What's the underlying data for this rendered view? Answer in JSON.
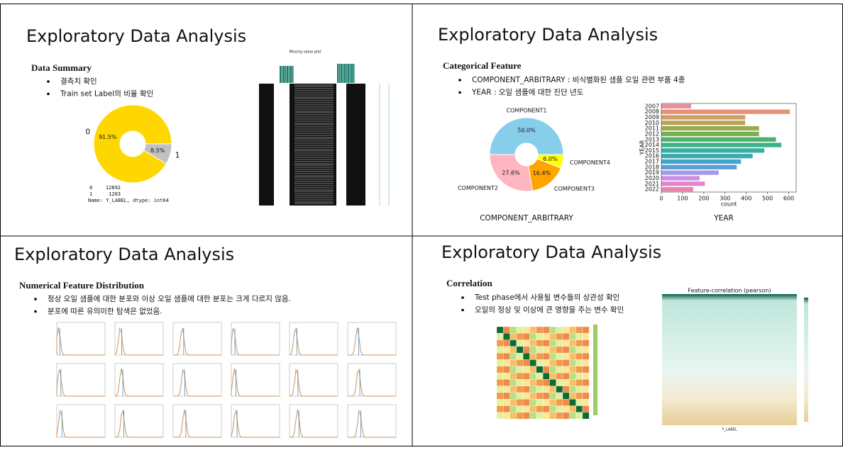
{
  "slides": [
    {
      "title": "Exploratory Data Analysis",
      "heading": "Data Summary",
      "bullets": [
        "결측치 확인",
        "Train set Label의 비율 확인"
      ],
      "label_pie": {
        "type": "pie",
        "labels": [
          "0",
          "1"
        ],
        "values": [
          91.5,
          8.5
        ],
        "value_labels": [
          "91.5%",
          "8.5%"
        ],
        "colors": [
          "#ffd700",
          "#c0c0c0"
        ]
      },
      "missing_plot": {
        "title": "Missing value plot"
      },
      "value_counts": {
        "rows": [
          [
            "0",
            12892
          ],
          [
            "1",
            1203
          ]
        ],
        "footer": "Name: Y_LABEL, dtype: int64"
      }
    },
    {
      "title": "Exploratory Data Analysis",
      "heading": "Categorical Feature",
      "bullets": [
        "COMPONENT_ARBITRARY : 비식별화된 샘플 오일 관련 부품 4종",
        "YEAR : 오일 샘플에 대한 진단 년도"
      ],
      "component_pie": {
        "type": "pie",
        "labels": [
          "COMPONENT1",
          "COMPONENT2",
          "COMPONENT3",
          "COMPONENT4"
        ],
        "values": [
          50.0,
          27.6,
          16.4,
          6.0
        ],
        "value_labels": [
          "50.0%",
          "27.6%",
          "16.4%",
          "6.0%"
        ],
        "colors": [
          "#87ceeb",
          "#ffb6c1",
          "#ffa500",
          "#ffff00"
        ],
        "xlabel": "COMPONENT_ARBITRARY"
      },
      "year_chart": {
        "type": "barh",
        "categories": [
          "2007",
          "2008",
          "2009",
          "2010",
          "2011",
          "2012",
          "2013",
          "2014",
          "2015",
          "2016",
          "2017",
          "2018",
          "2019",
          "2020",
          "2021",
          "2022"
        ],
        "values": [
          140,
          605,
          395,
          395,
          460,
          460,
          540,
          565,
          485,
          430,
          375,
          355,
          270,
          180,
          205,
          150
        ],
        "colors": [
          "#ea8f9a",
          "#e8917a",
          "#cfa063",
          "#b9a35a",
          "#9aab4f",
          "#79b04f",
          "#4fb26b",
          "#3db08c",
          "#38ada0",
          "#3aaab3",
          "#40a6c8",
          "#5a9ed9",
          "#a49ae5",
          "#c98fe3",
          "#e285d0",
          "#ea85ac"
        ],
        "xlim": [
          0,
          635
        ],
        "xticks": [
          0,
          100,
          200,
          300,
          400,
          500,
          600
        ],
        "xlabel": "count",
        "ylabel": "YEAR",
        "caption": "YEAR"
      }
    },
    {
      "title": "Exploratory Data Analysis",
      "heading": "Numerical Feature Distribution",
      "bullets": [
        "정상 오일 샘플에 대한 분포와 이상 오일 샘플에 대한 분포는 크게 다르지 않음.",
        "분포에 따른 유의미한 탐색은 없었음."
      ]
    },
    {
      "title": "Exploratory Data Analysis",
      "heading": "Correlation",
      "bullets": [
        "Test phase에서 사용될 변수들의 상관성 확인",
        "오일의 정상 및 이상에 큰 영향을 주는 변수 확인"
      ],
      "target_corr": {
        "title": "Feature-correlation (pearson)",
        "xlabel": "Y_LABEL"
      }
    }
  ]
}
